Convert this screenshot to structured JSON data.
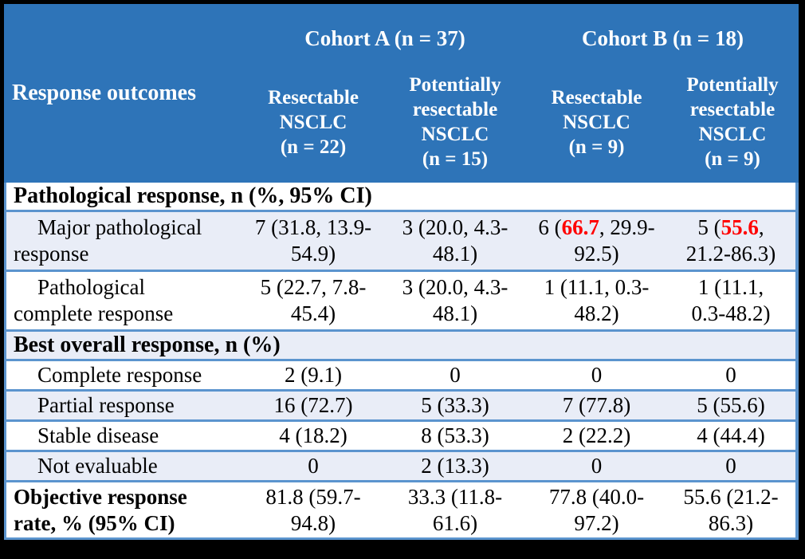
{
  "colors": {
    "header_bg": "#2e74b8",
    "header_text": "#ffffff",
    "row_band": "#e9edf7",
    "row_white": "#ffffff",
    "grid_line": "#5b94ce",
    "highlight_red": "#ff0000",
    "body_text": "#000000",
    "frame": "#000000"
  },
  "header": {
    "row_label": "Response outcomes",
    "cohort_a": "Cohort A (n = 37)",
    "cohort_b": "Cohort B (n = 18)",
    "columns": [
      "Resectable\nNSCLC\n(n = 22)",
      "Potentially\nresectable\nNSCLC\n(n = 15)",
      "Resectable\nNSCLC\n(n = 9)",
      "Potentially\nresectable\nNSCLC\n(n = 9)"
    ]
  },
  "rows": [
    {
      "type": "section",
      "label": "Pathological response, n (%, 95% CI)"
    },
    {
      "type": "data",
      "label": "Major pathological\nresponse",
      "cells": [
        {
          "pre": "7 (31.8, 13.9-\n54.9)",
          "red": "",
          "post": ""
        },
        {
          "pre": "3 (20.0, 4.3-\n48.1)",
          "red": "",
          "post": ""
        },
        {
          "pre": "6 (",
          "red": "66.7",
          "post": ", 29.9-\n92.5)"
        },
        {
          "pre": "5 (",
          "red": "55.6",
          "post": ",\n21.2-86.3)"
        }
      ]
    },
    {
      "type": "data",
      "label": "Pathological\ncomplete response",
      "cells": [
        {
          "pre": "5 (22.7, 7.8-\n45.4)",
          "red": "",
          "post": ""
        },
        {
          "pre": "3 (20.0, 4.3-\n48.1)",
          "red": "",
          "post": ""
        },
        {
          "pre": "1 (11.1, 0.3-\n48.2)",
          "red": "",
          "post": ""
        },
        {
          "pre": "1 (11.1,\n0.3-48.2)",
          "red": "",
          "post": ""
        }
      ]
    },
    {
      "type": "section",
      "label": "Best overall response, n (%)"
    },
    {
      "type": "data",
      "label": "Complete response",
      "cells": [
        {
          "pre": "2 (9.1)",
          "red": "",
          "post": ""
        },
        {
          "pre": "0",
          "red": "",
          "post": ""
        },
        {
          "pre": "0",
          "red": "",
          "post": ""
        },
        {
          "pre": "0",
          "red": "",
          "post": ""
        }
      ]
    },
    {
      "type": "data",
      "label": "Partial response",
      "cells": [
        {
          "pre": "16 (72.7)",
          "red": "",
          "post": ""
        },
        {
          "pre": "5 (33.3)",
          "red": "",
          "post": ""
        },
        {
          "pre": "7 (77.8)",
          "red": "",
          "post": ""
        },
        {
          "pre": "5 (55.6)",
          "red": "",
          "post": ""
        }
      ]
    },
    {
      "type": "data",
      "label": "Stable disease",
      "cells": [
        {
          "pre": "4 (18.2)",
          "red": "",
          "post": ""
        },
        {
          "pre": "8 (53.3)",
          "red": "",
          "post": ""
        },
        {
          "pre": "2 (22.2)",
          "red": "",
          "post": ""
        },
        {
          "pre": "4 (44.4)",
          "red": "",
          "post": ""
        }
      ]
    },
    {
      "type": "data",
      "label": "Not evaluable",
      "cells": [
        {
          "pre": "0",
          "red": "",
          "post": ""
        },
        {
          "pre": "2 (13.3)",
          "red": "",
          "post": ""
        },
        {
          "pre": "0",
          "red": "",
          "post": ""
        },
        {
          "pre": "0",
          "red": "",
          "post": ""
        }
      ]
    },
    {
      "type": "footer",
      "label": "Objective response\nrate, % (95% CI)",
      "cells": [
        {
          "pre": "81.8 (59.7-\n94.8)",
          "red": "",
          "post": ""
        },
        {
          "pre": "33.3 (11.8-\n61.6)",
          "red": "",
          "post": ""
        },
        {
          "pre": "77.8 (40.0-\n97.2)",
          "red": "",
          "post": ""
        },
        {
          "pre": "55.6 (21.2-\n86.3)",
          "red": "",
          "post": ""
        }
      ]
    }
  ]
}
